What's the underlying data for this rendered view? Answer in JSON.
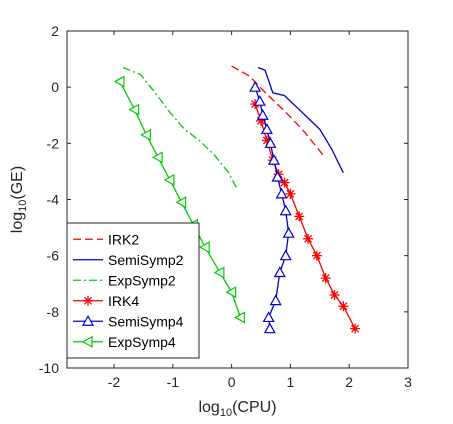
{
  "chart_data": {
    "type": "line",
    "xlabel": {
      "base": "log",
      "sub": "10",
      "rest": "(CPU)"
    },
    "ylabel": {
      "base": "log",
      "sub": "10",
      "rest": "(GE)"
    },
    "xlim": [
      -2.8,
      3
    ],
    "ylim": [
      -10,
      2
    ],
    "x_ticks": [
      -2,
      -1,
      0,
      1,
      2,
      3
    ],
    "y_ticks": [
      2,
      0,
      -2,
      -4,
      -6,
      -8,
      -10
    ],
    "x_tick_labels": [
      "-2",
      "-1",
      "0",
      "1",
      "2",
      "3"
    ],
    "y_tick_labels": [
      "2",
      "0",
      "-2",
      "-4",
      "-6",
      "-8",
      "-10"
    ],
    "grid": false,
    "legend_position": "bottom-left",
    "series": [
      {
        "name": "IRK2",
        "color": "#ff0000",
        "style": "dashed",
        "marker": "none",
        "x": [
          0.0,
          0.3,
          0.6,
          0.9,
          1.2,
          1.55
        ],
        "y": [
          0.75,
          0.4,
          -0.25,
          -0.85,
          -1.5,
          -2.4
        ]
      },
      {
        "name": "SemiSymp2",
        "color": "#0000cc",
        "style": "solid",
        "marker": "none",
        "x": [
          0.45,
          0.57,
          0.7,
          0.9,
          1.1,
          1.3,
          1.5,
          1.7,
          1.9
        ],
        "y": [
          0.7,
          0.6,
          -0.2,
          -0.3,
          -0.7,
          -1.1,
          -1.5,
          -2.2,
          -3.05
        ]
      },
      {
        "name": "ExpSymp2",
        "color": "#00cc00",
        "style": "dashdot",
        "marker": "none",
        "x": [
          -1.85,
          -1.55,
          -1.3,
          -1.05,
          -0.8,
          -0.55,
          -0.3,
          -0.05,
          0.1
        ],
        "y": [
          0.7,
          0.45,
          -0.2,
          -0.9,
          -1.5,
          -1.9,
          -2.4,
          -3.05,
          -3.65
        ]
      },
      {
        "name": "IRK4",
        "color": "#ff0000",
        "style": "solid",
        "marker": "asterisk",
        "x": [
          0.4,
          0.5,
          0.6,
          0.7,
          0.8,
          0.9,
          1.0,
          1.15,
          1.3,
          1.45,
          1.6,
          1.75,
          1.9,
          2.1
        ],
        "y": [
          -0.6,
          -1.2,
          -1.9,
          -2.6,
          -3.1,
          -3.4,
          -3.8,
          -4.6,
          -5.4,
          -6.0,
          -6.8,
          -7.4,
          -7.8,
          -8.6
        ]
      },
      {
        "name": "SemiSymp4",
        "color": "#0000cc",
        "style": "solid",
        "marker": "triangle-up",
        "x": [
          0.4,
          0.48,
          0.53,
          0.6,
          0.66,
          0.72,
          0.78,
          0.85,
          0.92,
          0.97,
          0.92,
          0.82,
          0.75,
          0.63,
          0.65
        ],
        "y": [
          0.0,
          -0.5,
          -1.0,
          -1.5,
          -2.0,
          -2.6,
          -3.2,
          -3.8,
          -4.4,
          -5.2,
          -6.0,
          -6.6,
          -7.6,
          -8.2,
          -8.6
        ]
      },
      {
        "name": "ExpSymp4",
        "color": "#00cc00",
        "style": "solid",
        "marker": "triangle-left",
        "x": [
          -1.9,
          -1.65,
          -1.45,
          -1.25,
          -1.05,
          -0.85,
          -0.65,
          -0.45,
          -0.2,
          0.0,
          0.15
        ],
        "y": [
          0.2,
          -0.8,
          -1.7,
          -2.5,
          -3.3,
          -4.1,
          -4.9,
          -5.7,
          -6.6,
          -7.3,
          -8.2
        ]
      }
    ]
  }
}
